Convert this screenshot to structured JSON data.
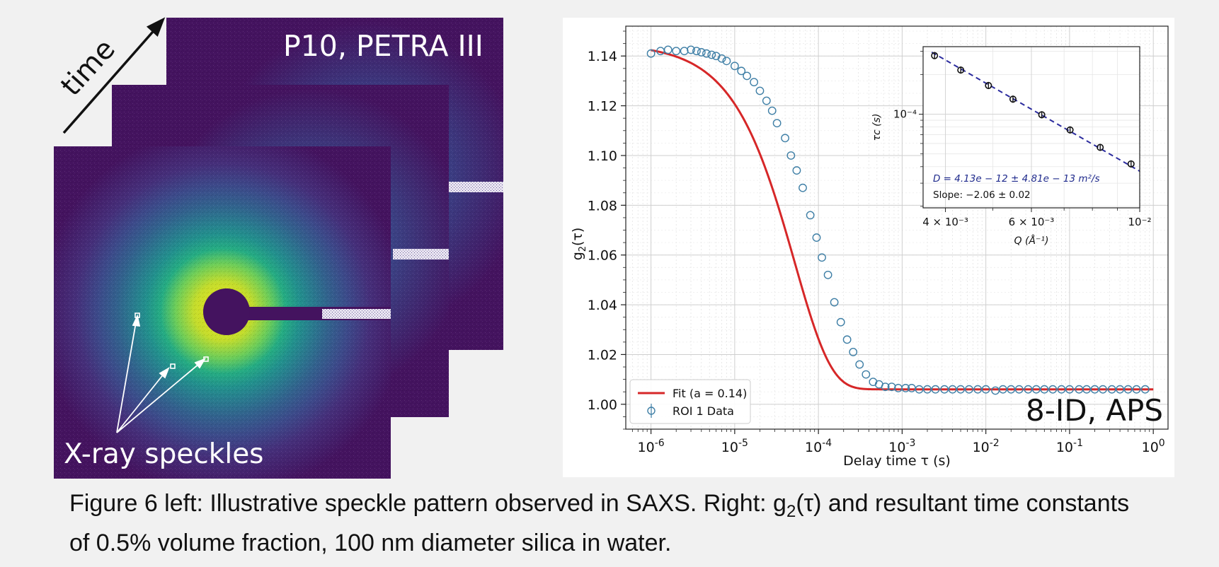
{
  "left_panel": {
    "facility_label": "P10, PETRA III",
    "time_label": "time",
    "speckles_label": "X-ray speckles"
  },
  "right_panel": {
    "facility_label": "8-ID, APS"
  },
  "chart_data": [
    {
      "type": "scatter",
      "xlabel": "Delay time τ (s)",
      "ylabel": "g2(τ)",
      "x_scale": "log",
      "xlim": [
        5e-07,
        1.5
      ],
      "ylim": [
        0.99,
        1.152
      ],
      "x_ticks": [
        {
          "label": "10-6",
          "value": 1e-06
        },
        {
          "label": "10-5",
          "value": 1e-05
        },
        {
          "label": "10-4",
          "value": 0.0001
        },
        {
          "label": "10-3",
          "value": 0.001
        },
        {
          "label": "10-2",
          "value": 0.01
        },
        {
          "label": "10-1",
          "value": 0.1
        },
        {
          "label": "100",
          "value": 1
        }
      ],
      "y_ticks": [
        "1.00",
        "1.02",
        "1.04",
        "1.06",
        "1.08",
        "1.10",
        "1.12",
        "1.14"
      ],
      "grid": true,
      "legend": "bottom-left",
      "series": [
        {
          "name": "Fit (a = 0.14)",
          "kind": "line",
          "color": "#d62728",
          "baseline": 1.006,
          "contrast": 0.139,
          "tau_c": 0.000104
        },
        {
          "name": "ROI 1 Data",
          "kind": "markers",
          "color": "#3f7fa6",
          "points": [
            [
              1e-06,
              1.141
            ],
            [
              1.3e-06,
              1.142
            ],
            [
              1.6e-06,
              1.1425
            ],
            [
              2e-06,
              1.142
            ],
            [
              2.5e-06,
              1.142
            ],
            [
              3e-06,
              1.1425
            ],
            [
              3.5e-06,
              1.142
            ],
            [
              4e-06,
              1.1415
            ],
            [
              4.6e-06,
              1.141
            ],
            [
              5.3e-06,
              1.1405
            ],
            [
              6e-06,
              1.14
            ],
            [
              7e-06,
              1.139
            ],
            [
              8e-06,
              1.138
            ],
            [
              1e-05,
              1.136
            ],
            [
              1.2e-05,
              1.134
            ],
            [
              1.4e-05,
              1.132
            ],
            [
              1.7e-05,
              1.1295
            ],
            [
              2e-05,
              1.126
            ],
            [
              2.4e-05,
              1.122
            ],
            [
              2.8e-05,
              1.118
            ],
            [
              3.2e-05,
              1.113
            ],
            [
              4e-05,
              1.107
            ],
            [
              4.7e-05,
              1.1
            ],
            [
              5.5e-05,
              1.094
            ],
            [
              6.5e-05,
              1.087
            ],
            [
              8e-05,
              1.076
            ],
            [
              9.5e-05,
              1.067
            ],
            [
              0.00011,
              1.059
            ],
            [
              0.00013,
              1.052
            ],
            [
              0.000155,
              1.041
            ],
            [
              0.000185,
              1.033
            ],
            [
              0.00022,
              1.026
            ],
            [
              0.00026,
              1.021
            ],
            [
              0.00031,
              1.016
            ],
            [
              0.00037,
              1.012
            ],
            [
              0.00045,
              1.009
            ],
            [
              0.00053,
              1.008
            ],
            [
              0.00063,
              1.007
            ],
            [
              0.00075,
              1.007
            ],
            [
              0.0009,
              1.0065
            ],
            [
              0.0011,
              1.0065
            ],
            [
              0.0013,
              1.0065
            ],
            [
              0.0016,
              1.006
            ],
            [
              0.002,
              1.006
            ],
            [
              0.0025,
              1.006
            ],
            [
              0.0032,
              1.006
            ],
            [
              0.004,
              1.006
            ],
            [
              0.005,
              1.006
            ],
            [
              0.0063,
              1.006
            ],
            [
              0.008,
              1.006
            ],
            [
              0.01,
              1.006
            ],
            [
              0.013,
              1.0055
            ],
            [
              0.016,
              1.006
            ],
            [
              0.02,
              1.006
            ],
            [
              0.025,
              1.006
            ],
            [
              0.032,
              1.006
            ],
            [
              0.04,
              1.006
            ],
            [
              0.05,
              1.006
            ],
            [
              0.063,
              1.006
            ],
            [
              0.08,
              1.006
            ],
            [
              0.1,
              1.006
            ],
            [
              0.13,
              1.006
            ],
            [
              0.16,
              1.006
            ],
            [
              0.2,
              1.006
            ],
            [
              0.25,
              1.006
            ],
            [
              0.32,
              1.006
            ],
            [
              0.4,
              1.006
            ],
            [
              0.5,
              1.006
            ],
            [
              0.63,
              1.006
            ],
            [
              0.8,
              1.006
            ]
          ]
        }
      ]
    },
    {
      "type": "scatter",
      "xlabel": "Q (Å⁻¹)",
      "ylabel": "τc (s)",
      "x_scale": "log",
      "y_scale": "log",
      "xlim": [
        0.0036,
        0.01
      ],
      "ylim": [
        1.95e-05,
        0.000325
      ],
      "x_ticks": [
        {
          "label": "4 × 10⁻³",
          "value": 0.004
        },
        {
          "label": "6 × 10⁻³",
          "value": 0.006
        },
        {
          "label": "10⁻²",
          "value": 0.01
        }
      ],
      "y_ticks": [
        {
          "label": "10⁻⁴",
          "value": 0.0001
        }
      ],
      "annotations": [
        "D = 4.13e − 12 ± 4.81e − 13 m²/s",
        "Slope: −2.06 ± 0.02"
      ],
      "series": [
        {
          "name": "fit",
          "kind": "dashed-line",
          "color": "#2b2b9e",
          "line": [
            [
              0.00375,
              0.000295
            ],
            [
              0.01,
              3.7e-05
            ]
          ]
        },
        {
          "name": "data",
          "kind": "markers",
          "color": "#111111",
          "points": [
            [
              0.0038,
              0.000278
            ],
            [
              0.0043,
              0.000216
            ],
            [
              0.0049,
              0.000165
            ],
            [
              0.0055,
              0.00013
            ],
            [
              0.0063,
              9.9e-05
            ],
            [
              0.0072,
              7.6e-05
            ],
            [
              0.0083,
              5.6e-05
            ],
            [
              0.0096,
              4.2e-05
            ]
          ]
        }
      ]
    }
  ],
  "caption": {
    "line1_a": "Figure 6 left: Illustrative speckle pattern observed in SAXS. Right: g",
    "line1_sub": "2",
    "line1_b": "(τ) and resultant time constants",
    "line2": "of 0.5% volume fraction, 100 nm diameter silica in water."
  }
}
